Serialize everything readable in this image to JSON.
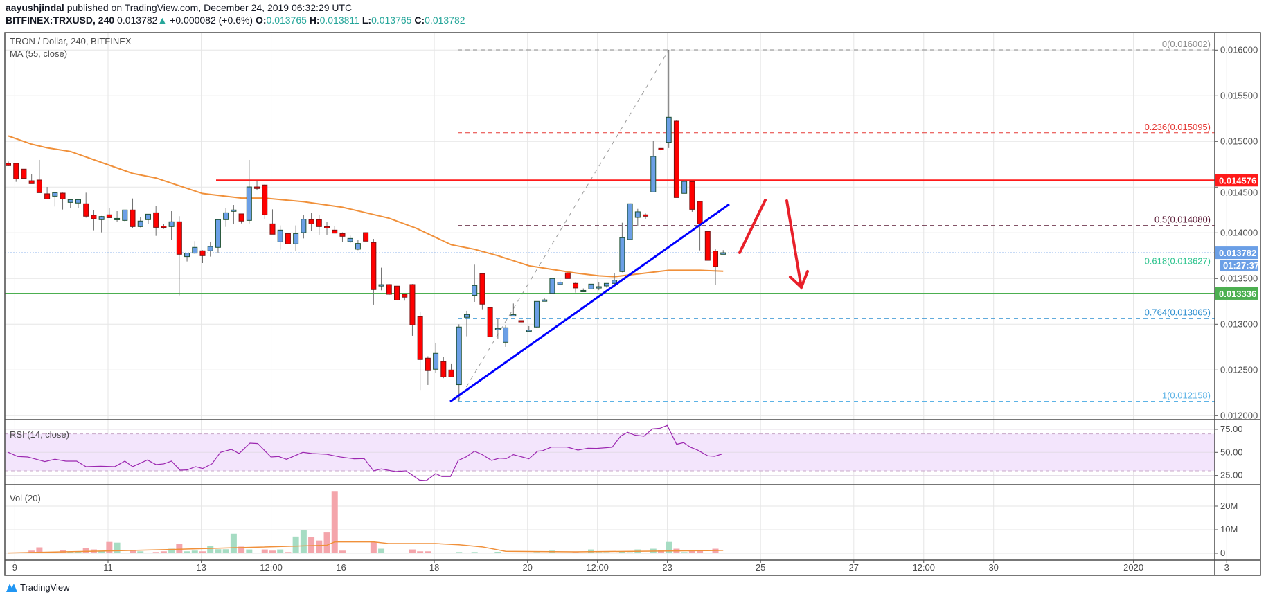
{
  "header": {
    "author": "aayushjindal",
    "published": " published on TradingView.com, December 24, 2019 06:32:29 UTC",
    "symbol": "BITFINEX:TRXUSD, 240",
    "last": "0.013782",
    "change_arrow": "▲",
    "change": "+0.000082 (+0.6%)",
    "o_label": "O:",
    "o": "0.013765",
    "h_label": "H:",
    "h": "0.013811",
    "l_label": "L:",
    "l": "0.013765",
    "c_label": "C:",
    "c": "0.013782"
  },
  "legend": {
    "title": "TRON / Dollar, 240, BITFINEX",
    "ma": "MA (55, close)",
    "rsi": "RSI (14, close)",
    "vol": "Vol (20)"
  },
  "footer": {
    "logo_text": "TradingView"
  },
  "colors": {
    "up_body": "#6b9fe6",
    "up_border": "#1f5133",
    "down_body": "#ff0000",
    "down_border": "#7a1212",
    "ma": "#f0903a",
    "rsi": "#9c27b0",
    "rsi_band": "#f3e5fc",
    "vol_up": "#a6dcc3",
    "vol_down": "#f4a5ab",
    "resistance": "#ff1a1a",
    "support": "#4caf50",
    "trendline": "#0000ff",
    "arrows": "#e8202a",
    "last_price": "#6b9fe6"
  },
  "chart_data": {
    "type": "candlestick",
    "timeframe": "240",
    "price_axis": {
      "range": [
        0.012,
        0.016
      ],
      "ticks": [
        "0.016000",
        "0.015500",
        "0.015000",
        "0.014500",
        "0.014000",
        "0.013500",
        "0.013000",
        "0.012500",
        "0.012000"
      ]
    },
    "time_axis": {
      "ticks": [
        "9",
        "11",
        "13",
        "12:00",
        "16",
        "18",
        "20",
        "12:00",
        "23",
        "25",
        "27",
        "12:00",
        "30",
        "2020",
        "3"
      ]
    },
    "candles_ohlc": [
      [
        0.01476,
        0.01478,
        0.01473,
        0.014735
      ],
      [
        0.01476,
        0.01476,
        0.014558,
        0.014591
      ],
      [
        0.014697,
        0.0147,
        0.01459,
        0.014596
      ],
      [
        0.01457,
        0.014646,
        0.014538,
        0.014538
      ],
      [
        0.014578,
        0.014798,
        0.014439,
        0.014439
      ],
      [
        0.014427,
        0.014502,
        0.014371,
        0.014371
      ],
      [
        0.014401,
        0.014439,
        0.014288,
        0.014439
      ],
      [
        0.014434,
        0.01444,
        0.014255,
        0.014371
      ],
      [
        0.014333,
        0.014363,
        0.01427,
        0.014363
      ],
      [
        0.014326,
        0.01437,
        0.01427,
        0.014363
      ],
      [
        0.014318,
        0.014439,
        0.014166,
        0.014182
      ],
      [
        0.014192,
        0.014245,
        0.014028,
        0.014154
      ],
      [
        0.014144,
        0.014185,
        0.014005,
        0.014179
      ],
      [
        0.014197,
        0.014275,
        0.014166,
        0.014166
      ],
      [
        0.014154,
        0.014237,
        0.014124,
        0.014158
      ],
      [
        0.014136,
        0.01425,
        0.014125,
        0.01425
      ],
      [
        0.01425,
        0.014376,
        0.014053,
        0.014068
      ],
      [
        0.014068,
        0.014169,
        0.01406,
        0.014129
      ],
      [
        0.014144,
        0.014204,
        0.014098,
        0.014204
      ],
      [
        0.014219,
        0.014295,
        0.013967,
        0.01406
      ],
      [
        0.014073,
        0.014098,
        0.014043,
        0.01407
      ],
      [
        0.014068,
        0.014237,
        0.013922,
        0.014121
      ],
      [
        0.014121,
        0.014182,
        0.013316,
        0.013765
      ],
      [
        0.01374,
        0.013778,
        0.013687,
        0.013778
      ],
      [
        0.013778,
        0.013909,
        0.01377,
        0.013841
      ],
      [
        0.013803,
        0.01381,
        0.013669,
        0.01375
      ],
      [
        0.013803,
        0.013904,
        0.01374,
        0.013851
      ],
      [
        0.013841,
        0.014144,
        0.013783,
        0.014144
      ],
      [
        0.014144,
        0.014275,
        0.014065,
        0.014219
      ],
      [
        0.014245,
        0.014305,
        0.014093,
        0.01425
      ],
      [
        0.014207,
        0.01421,
        0.014103,
        0.014129
      ],
      [
        0.014136,
        0.014798,
        0.014103,
        0.014502
      ],
      [
        0.014502,
        0.01457,
        0.014464,
        0.014485
      ],
      [
        0.014523,
        0.01453,
        0.014149,
        0.014197
      ],
      [
        0.014098,
        0.014257,
        0.013985,
        0.013985
      ],
      [
        0.013901,
        0.014081,
        0.013816,
        0.01403
      ],
      [
        0.013992,
        0.014,
        0.013879,
        0.013879
      ],
      [
        0.013879,
        0.014081,
        0.0138,
        0.013992
      ],
      [
        0.014002,
        0.014194,
        0.013939,
        0.014149
      ],
      [
        0.014144,
        0.014217,
        0.01402,
        0.014098
      ],
      [
        0.014144,
        0.014199,
        0.01398,
        0.014068
      ],
      [
        0.014068,
        0.014123,
        0.01398,
        0.014063
      ],
      [
        0.01403,
        0.014078,
        0.014,
        0.013997
      ],
      [
        0.013992,
        0.014005,
        0.0139,
        0.013962
      ],
      [
        0.013904,
        0.01397,
        0.01389,
        0.013939
      ],
      [
        0.013821,
        0.01392,
        0.01381,
        0.013884
      ],
      [
        0.014002,
        0.014005,
        0.013909,
        0.013909
      ],
      [
        0.013894,
        0.013934,
        0.013215,
        0.013379
      ],
      [
        0.013425,
        0.013619,
        0.013371,
        0.013433
      ],
      [
        0.013434,
        0.01344,
        0.01332,
        0.013328
      ],
      [
        0.013417,
        0.01342,
        0.013265,
        0.013265
      ],
      [
        0.013328,
        0.01333,
        0.013258,
        0.013296
      ],
      [
        0.013434,
        0.01344,
        0.012874,
        0.012993
      ],
      [
        0.013083,
        0.013131,
        0.012281,
        0.012614
      ],
      [
        0.012629,
        0.01265,
        0.012336,
        0.012493
      ],
      [
        0.012508,
        0.012798,
        0.012465,
        0.012682
      ],
      [
        0.012591,
        0.01264,
        0.01241,
        0.012424
      ],
      [
        0.0125,
        0.012571,
        0.01242,
        0.012424
      ],
      [
        0.012339,
        0.013,
        0.012159,
        0.01297
      ],
      [
        0.013076,
        0.013147,
        0.012869,
        0.013106
      ],
      [
        0.013316,
        0.013652,
        0.013245,
        0.013424
      ],
      [
        0.013553,
        0.013553,
        0.013164,
        0.01322
      ],
      [
        0.013182,
        0.013185,
        0.012864,
        0.012864
      ],
      [
        0.012948,
        0.013056,
        0.012844,
        0.012955
      ],
      [
        0.012803,
        0.012988,
        0.012753,
        0.012962
      ],
      [
        0.013098,
        0.013227,
        0.013088,
        0.013104
      ],
      [
        0.01304,
        0.013088,
        0.012988,
        0.013028
      ],
      [
        0.012928,
        0.01298,
        0.012928,
        0.012936
      ],
      [
        0.01297,
        0.01325,
        0.012965,
        0.01325
      ],
      [
        0.01326,
        0.01329,
        0.013255,
        0.013266
      ],
      [
        0.013338,
        0.0135,
        0.013336,
        0.0135
      ],
      [
        0.013434,
        0.013488,
        0.01343,
        0.01346
      ],
      [
        0.013561,
        0.013565,
        0.0135,
        0.0135
      ],
      [
        0.013447,
        0.013462,
        0.013346,
        0.013397
      ],
      [
        0.013362,
        0.013392,
        0.013355,
        0.01337
      ],
      [
        0.013386,
        0.013445,
        0.013323,
        0.013439
      ],
      [
        0.013403,
        0.013462,
        0.013372,
        0.013411
      ],
      [
        0.013419,
        0.01345,
        0.0134,
        0.013447
      ],
      [
        0.013447,
        0.013556,
        0.01344,
        0.013482
      ],
      [
        0.013576,
        0.014111,
        0.013568,
        0.013947
      ],
      [
        0.013927,
        0.014326,
        0.013925,
        0.014318
      ],
      [
        0.014169,
        0.014262,
        0.014073,
        0.01423
      ],
      [
        0.014197,
        0.014212,
        0.014149,
        0.014187
      ],
      [
        0.014447,
        0.015007,
        0.014447,
        0.014836
      ],
      [
        0.014924,
        0.015002,
        0.014861,
        0.014914
      ],
      [
        0.01499,
        0.016002,
        0.014927,
        0.015265
      ],
      [
        0.015222,
        0.01523,
        0.014386,
        0.014386
      ],
      [
        0.014432,
        0.014576,
        0.01443,
        0.014563
      ],
      [
        0.01456,
        0.014565,
        0.01423,
        0.014257
      ],
      [
        0.014343,
        0.014345,
        0.013808,
        0.014098
      ],
      [
        0.014015,
        0.01402,
        0.013699,
        0.013699
      ],
      [
        0.0138,
        0.013828,
        0.013429,
        0.013631
      ],
      [
        0.013765,
        0.013811,
        0.013765,
        0.013782
      ]
    ],
    "ma55": [
      [
        0,
        0.01506
      ],
      [
        3,
        0.01497
      ],
      [
        5,
        0.01493
      ],
      [
        8,
        0.01489
      ],
      [
        13,
        0.01474
      ],
      [
        16,
        0.01465
      ],
      [
        19,
        0.0146
      ],
      [
        25,
        0.01443
      ],
      [
        30,
        0.01438
      ],
      [
        33,
        0.01438
      ],
      [
        38,
        0.01434
      ],
      [
        43,
        0.01428
      ],
      [
        49,
        0.01416
      ],
      [
        52.5,
        0.01405
      ],
      [
        57,
        0.01387
      ],
      [
        60,
        0.01382
      ],
      [
        63,
        0.01375
      ],
      [
        67,
        0.01364
      ],
      [
        70,
        0.0136
      ],
      [
        73,
        0.01356
      ],
      [
        76,
        0.01353
      ],
      [
        78,
        0.01352
      ],
      [
        81,
        0.01355
      ],
      [
        85,
        0.01359
      ],
      [
        89,
        0.01359
      ],
      [
        92,
        0.01358
      ]
    ],
    "rsi": {
      "range": [
        0,
        100
      ],
      "bands": [
        30,
        70
      ],
      "ticks": [
        "75.00",
        "50.00",
        "25.00"
      ],
      "points": [
        [
          0,
          50
        ],
        [
          1.2,
          45.5
        ],
        [
          2.5,
          45
        ],
        [
          4.7,
          40
        ],
        [
          6,
          42.5
        ],
        [
          7.4,
          40.5
        ],
        [
          8.8,
          40.5
        ],
        [
          10,
          34.5
        ],
        [
          11.9,
          35
        ],
        [
          13.7,
          34.5
        ],
        [
          15,
          40.5
        ],
        [
          16,
          34.5
        ],
        [
          17.9,
          41.75
        ],
        [
          19,
          36.75
        ],
        [
          20,
          37.5
        ],
        [
          21,
          40.5
        ],
        [
          22.1,
          30.75
        ],
        [
          23,
          31
        ],
        [
          24.1,
          34.5
        ],
        [
          25,
          32.5
        ],
        [
          26.2,
          37.5
        ],
        [
          27.3,
          50
        ],
        [
          28.7,
          53.25
        ],
        [
          29.7,
          48.75
        ],
        [
          31.1,
          60
        ],
        [
          32.1,
          59.5
        ],
        [
          33.8,
          45
        ],
        [
          34.8,
          45.5
        ],
        [
          35.8,
          42.5
        ],
        [
          37.9,
          50
        ],
        [
          39.1,
          48.75
        ],
        [
          40.9,
          48
        ],
        [
          42.7,
          45
        ],
        [
          44.5,
          43
        ],
        [
          45.8,
          43.25
        ],
        [
          47,
          30
        ],
        [
          48,
          32
        ],
        [
          49.8,
          29.25
        ],
        [
          51.2,
          30
        ],
        [
          52.9,
          20
        ],
        [
          53.8,
          19.5
        ],
        [
          55,
          27
        ],
        [
          55.8,
          23.75
        ],
        [
          56.9,
          23.75
        ],
        [
          57.9,
          41.25
        ],
        [
          58.9,
          45
        ],
        [
          60,
          51.25
        ],
        [
          61,
          47.5
        ],
        [
          62.2,
          41.25
        ],
        [
          63.2,
          43.75
        ],
        [
          64.1,
          43.25
        ],
        [
          65,
          47.5
        ],
        [
          67,
          43
        ],
        [
          68.1,
          51.25
        ],
        [
          68.75,
          51.75
        ],
        [
          69.9,
          55.75
        ],
        [
          71.9,
          55.75
        ],
        [
          73.3,
          52.5
        ],
        [
          74.6,
          54.5
        ],
        [
          75.7,
          54.25
        ],
        [
          77.7,
          55.5
        ],
        [
          78.8,
          67.5
        ],
        [
          79.7,
          71.75
        ],
        [
          80.6,
          68.75
        ],
        [
          81.8,
          67.5
        ],
        [
          82.9,
          75.5
        ],
        [
          83.9,
          76.25
        ],
        [
          84.8,
          79.25
        ],
        [
          86,
          58.75
        ],
        [
          86.9,
          60.5
        ],
        [
          87.8,
          55.5
        ],
        [
          88.7,
          52.5
        ],
        [
          90,
          46.25
        ],
        [
          90.9,
          45.75
        ],
        [
          91.8,
          48
        ]
      ]
    },
    "volume_millions": [
      0.1,
      0.1,
      0.1,
      1.1,
      2.5,
      0.4,
      0.4,
      1.3,
      0.6,
      0.6,
      2.2,
      1.6,
      1.0,
      4.8,
      4.5,
      0.2,
      1.2,
      0.8,
      0.3,
      0.5,
      0.8,
      1.9,
      3.9,
      0.8,
      1.1,
      0.8,
      3.1,
      1.7,
      1.7,
      8.3,
      2.8,
      1.6,
      0.2,
      1.6,
      1.1,
      1.6,
      0.5,
      7.1,
      9.7,
      6.8,
      5.4,
      8.8,
      26.4,
      1.1,
      0.2,
      0.2,
      0.1,
      4.8,
      1.9,
      0,
      0,
      0,
      1.6,
      0.8,
      0.8,
      0.2,
      0,
      0.2,
      0.5,
      0.2,
      0.5,
      0.2,
      0,
      0.6,
      0.2,
      0,
      0,
      0,
      0.4,
      0,
      1.1,
      0,
      0,
      0.4,
      0,
      1.6,
      0.4,
      0.4,
      0,
      0.8,
      0.4,
      1.6,
      0,
      1.9,
      1.3,
      4.8,
      1.9,
      0.5,
      1.2,
      1.2,
      0.2,
      1.9,
      0.1
    ],
    "volume_ma20": [
      [
        0,
        0.1
      ],
      [
        13,
        1.0
      ],
      [
        20,
        1.5
      ],
      [
        29,
        2.3
      ],
      [
        41,
        3.4
      ],
      [
        42,
        4.8
      ],
      [
        47,
        4.8
      ],
      [
        49,
        4.1
      ],
      [
        55,
        4.1
      ],
      [
        58,
        3.6
      ],
      [
        61,
        2.7
      ],
      [
        64,
        0.8
      ],
      [
        73,
        0.6
      ],
      [
        90,
        1.1
      ],
      [
        92,
        1.2
      ]
    ],
    "volume_ticks": [
      "20M",
      "10M",
      "0"
    ],
    "fib_levels": [
      {
        "label": "0(0.016002)",
        "price": 0.016002,
        "color": "#8a8a8a"
      },
      {
        "label": "0.236(0.015095)",
        "price": 0.015095,
        "color": "#e53935"
      },
      {
        "label": "0.5(0.014080)",
        "price": 0.01408,
        "color": "#5a1a35"
      },
      {
        "label": "0.618(0.013627)",
        "price": 0.013627,
        "color": "#2fc48f"
      },
      {
        "label": "0.764(0.013065)",
        "price": 0.013065,
        "color": "#2d8fd0"
      },
      {
        "label": "1(0.012158)",
        "price": 0.012158,
        "color": "#5cb3e6"
      }
    ],
    "resistance": {
      "price": 0.014576,
      "label": "0.014576"
    },
    "support": {
      "price": 0.013336,
      "label": "0.013336"
    },
    "last_price": {
      "price": 0.013782,
      "label": "0.013782",
      "countdown": "01:27:37"
    }
  }
}
